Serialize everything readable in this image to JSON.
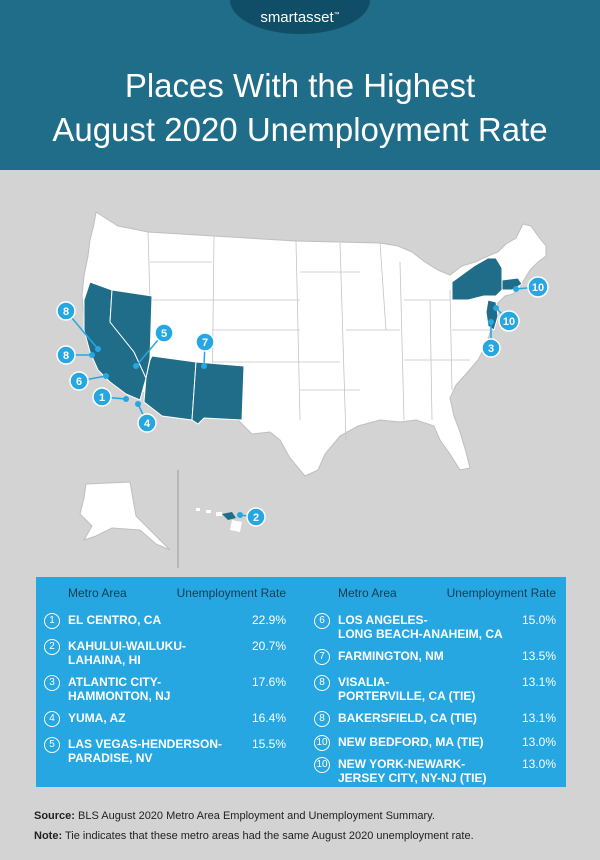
{
  "brand": {
    "name": "smartasset",
    "mark": "™"
  },
  "title": {
    "line1": "Places With the Highest",
    "line2": "August 2020 Unemployment Rate"
  },
  "table": {
    "metro_header": "Metro Area",
    "rate_header": "Unemployment Rate",
    "left": [
      {
        "rank": "1",
        "line1": "EL CENTRO, CA",
        "line2": "",
        "rate": "22.9%"
      },
      {
        "rank": "2",
        "line1": "KAHULUI-WAILUKU-",
        "line2": "LAHAINA, HI",
        "rate": "20.7%"
      },
      {
        "rank": "3",
        "line1": "ATLANTIC CITY-",
        "line2": "HAMMONTON, NJ",
        "rate": "17.6%"
      },
      {
        "rank": "4",
        "line1": "YUMA, AZ",
        "line2": "",
        "rate": "16.4%"
      },
      {
        "rank": "5",
        "line1": "LAS VEGAS-HENDERSON-",
        "line2": "PARADISE, NV",
        "rate": "15.5%"
      }
    ],
    "right": [
      {
        "rank": "6",
        "line1": "LOS ANGELES-",
        "line2": "LONG BEACH-ANAHEIM, CA",
        "rate": "15.0%"
      },
      {
        "rank": "7",
        "line1": "FARMINGTON, NM",
        "line2": "",
        "rate": "13.5%"
      },
      {
        "rank": "8",
        "line1": "VISALIA-",
        "line2": "PORTERVILLE, CA (TIE)",
        "rate": "13.1%"
      },
      {
        "rank": "8",
        "line1": "BAKERSFIELD, CA (TIE)",
        "line2": "",
        "rate": "13.1%"
      },
      {
        "rank": "10",
        "line1": "NEW BEDFORD, MA (TIE)",
        "line2": "",
        "rate": "13.0%"
      },
      {
        "rank": "10",
        "line1": "NEW YORK-NEWARK-",
        "line2": "JERSEY CITY, NY-NJ (TIE)",
        "rate": "13.0%"
      }
    ]
  },
  "map": {
    "markers": [
      "8",
      "8",
      "6",
      "1",
      "4",
      "5",
      "7",
      "2",
      "3",
      "10",
      "10"
    ]
  },
  "footer": {
    "source_label": "Source:",
    "source_text": "BLS August 2020 Metro Area Employment and Unemployment Summary.",
    "note_label": "Note:",
    "note_text": "Tie indicates that these metro areas had the same August 2020 unemployment rate."
  },
  "colors": {
    "header": "#1f6d89",
    "highlight": "#1f6d89",
    "marker": "#27a7e2",
    "panel": "#27a7e2",
    "land": "#ffffff",
    "background": "#d3d3d3"
  }
}
